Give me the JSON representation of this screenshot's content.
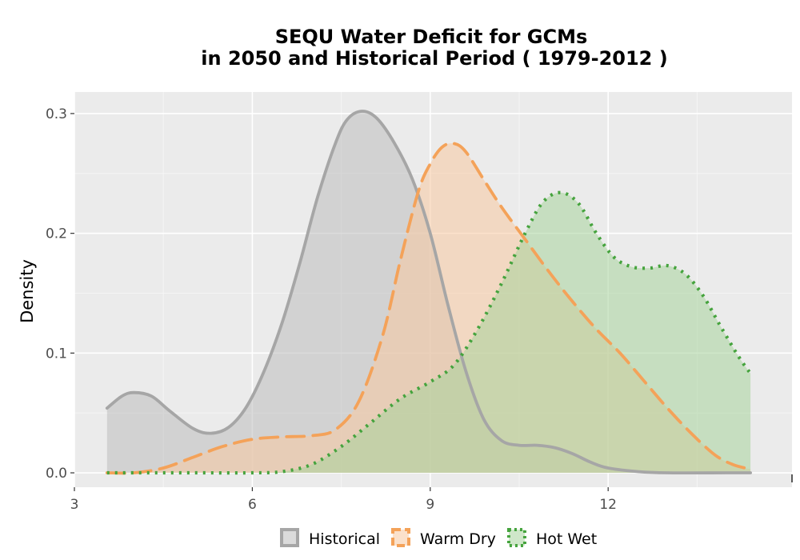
{
  "chart_data": {
    "type": "area",
    "title_line1": "SEQU  Water Deficit for GCMs",
    "title_line2": "in 2050 and Historical Period ( 1979-2012 )",
    "xlabel": "",
    "ylabel": "Density",
    "xlim": [
      3,
      15.1
    ],
    "ylim": [
      -0.012,
      0.318
    ],
    "x_ticks": [
      3,
      6,
      9,
      12
    ],
    "x_tick_labels": [
      "3",
      "6",
      "9",
      "12"
    ],
    "y_ticks": [
      0.0,
      0.1,
      0.2,
      0.3
    ],
    "y_tick_labels": [
      "0.0",
      "0.1",
      "0.2",
      "0.3"
    ],
    "grid": true,
    "legend_position": "bottom",
    "series": [
      {
        "name": "Historical",
        "color": "#a6a6a6",
        "fill": "#bdbdbd",
        "line_style": "solid",
        "x": [
          3.55,
          3.8,
          4.0,
          4.3,
          4.6,
          5.0,
          5.3,
          5.6,
          5.9,
          6.2,
          6.5,
          6.8,
          7.1,
          7.4,
          7.6,
          7.85,
          8.1,
          8.4,
          8.7,
          9.0,
          9.3,
          9.6,
          9.9,
          10.2,
          10.5,
          10.8,
          11.1,
          11.4,
          11.7,
          12.0,
          12.5,
          13.0,
          14.0,
          14.4
        ],
        "y": [
          0.054,
          0.064,
          0.067,
          0.064,
          0.052,
          0.037,
          0.033,
          0.038,
          0.055,
          0.085,
          0.125,
          0.175,
          0.23,
          0.275,
          0.295,
          0.302,
          0.296,
          0.275,
          0.245,
          0.2,
          0.14,
          0.085,
          0.045,
          0.027,
          0.023,
          0.023,
          0.021,
          0.016,
          0.009,
          0.004,
          0.001,
          0.0,
          0.0,
          0.0
        ]
      },
      {
        "name": "Warm Dry",
        "color": "#f4a259",
        "fill": "#f7c9a0",
        "line_style": "dashed",
        "x": [
          3.55,
          4.0,
          4.5,
          5.0,
          5.5,
          6.0,
          6.5,
          7.0,
          7.4,
          7.8,
          8.2,
          8.5,
          8.8,
          9.0,
          9.2,
          9.4,
          9.6,
          9.9,
          10.2,
          10.6,
          11.0,
          11.4,
          11.8,
          12.2,
          12.6,
          13.0,
          13.4,
          13.8,
          14.1,
          14.4
        ],
        "y": [
          0.0,
          0.0,
          0.004,
          0.013,
          0.022,
          0.028,
          0.03,
          0.031,
          0.036,
          0.06,
          0.115,
          0.178,
          0.235,
          0.258,
          0.272,
          0.275,
          0.268,
          0.245,
          0.222,
          0.195,
          0.168,
          0.143,
          0.12,
          0.1,
          0.077,
          0.054,
          0.033,
          0.015,
          0.007,
          0.003
        ]
      },
      {
        "name": "Hot Wet",
        "color": "#45a33d",
        "fill": "#a8d39c",
        "line_style": "dotted",
        "x": [
          3.55,
          4.0,
          5.0,
          6.0,
          6.5,
          7.0,
          7.5,
          8.0,
          8.5,
          9.0,
          9.4,
          9.8,
          10.2,
          10.6,
          10.9,
          11.2,
          11.5,
          11.8,
          12.1,
          12.4,
          12.7,
          13.0,
          13.3,
          13.6,
          13.9,
          14.2,
          14.4
        ],
        "y": [
          0.0,
          0.0,
          0.0,
          0.0,
          0.001,
          0.007,
          0.022,
          0.042,
          0.062,
          0.076,
          0.09,
          0.12,
          0.158,
          0.2,
          0.226,
          0.234,
          0.225,
          0.2,
          0.18,
          0.172,
          0.171,
          0.173,
          0.166,
          0.148,
          0.122,
          0.097,
          0.083
        ]
      }
    ]
  }
}
